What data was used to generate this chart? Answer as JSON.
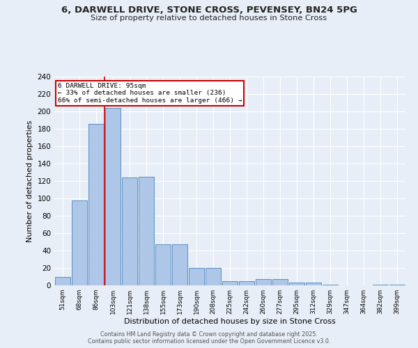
{
  "title_line1": "6, DARWELL DRIVE, STONE CROSS, PEVENSEY, BN24 5PG",
  "title_line2": "Size of property relative to detached houses in Stone Cross",
  "xlabel": "Distribution of detached houses by size in Stone Cross",
  "ylabel": "Number of detached properties",
  "categories": [
    "51sqm",
    "68sqm",
    "86sqm",
    "103sqm",
    "121sqm",
    "138sqm",
    "155sqm",
    "173sqm",
    "190sqm",
    "208sqm",
    "225sqm",
    "242sqm",
    "260sqm",
    "277sqm",
    "295sqm",
    "312sqm",
    "329sqm",
    "347sqm",
    "364sqm",
    "382sqm",
    "399sqm"
  ],
  "values": [
    10,
    98,
    186,
    204,
    124,
    125,
    47,
    47,
    20,
    20,
    5,
    5,
    7,
    7,
    3,
    3,
    1,
    0,
    0,
    1,
    1
  ],
  "bar_color": "#aec6e8",
  "bar_edge_color": "#5a8fc0",
  "background_color": "#e8eef7",
  "grid_color": "#ffffff",
  "vline_color": "#cc0000",
  "annotation_text": "6 DARWELL DRIVE: 95sqm\n← 33% of detached houses are smaller (236)\n66% of semi-detached houses are larger (466) →",
  "annotation_box_color": "#cc0000",
  "ylim": [
    0,
    240
  ],
  "yticks": [
    0,
    20,
    40,
    60,
    80,
    100,
    120,
    140,
    160,
    180,
    200,
    220,
    240
  ],
  "footer_line1": "Contains HM Land Registry data © Crown copyright and database right 2025.",
  "footer_line2": "Contains public sector information licensed under the Open Government Licence v3.0."
}
